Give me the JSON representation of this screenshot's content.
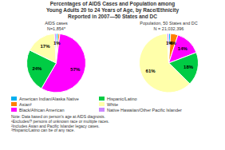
{
  "title": "Percentages of AIDS Cases and Population among\nYoung Adults 20 to 24 Years of Age, by Race/Ethnicity\nReported in 2007—50 States and DC",
  "annotations": [
    "Note: Data based on person's age at AIDS diagnosis.\n¹Excludes/? persons of unknown race or multiple races.\n²Includes Asian and Pacific Islander legacy cases.\n³Hispanic/Latino can be of any race."
  ],
  "chart_data": [
    {
      "type": "pie",
      "title": "AIDS cases\nN=1,854*",
      "categories": [
        "American Indian/Alaska Native",
        "Asian²",
        "Black/African American",
        "Hispanic/Latino",
        "White",
        "Native Hawaiian/Other Pacific Islander"
      ],
      "values": [
        1,
        1,
        57,
        24,
        17,
        1
      ],
      "value_labels": [
        "1%",
        null,
        "57%",
        "24%",
        "17%",
        null
      ],
      "colors": [
        "#00b0f0",
        "#ff8000",
        "#ff00ff",
        "#00cc44",
        "#ffffaa",
        "#cc88ff"
      ],
      "data_labels": true,
      "legend": "bottom"
    },
    {
      "type": "pie",
      "title": "Population, 50 States and DC\nN = 21,032,396",
      "categories": [
        "American Indian/Alaska Native",
        "Asian²",
        "Black/African American",
        "Hispanic/Latino",
        "White",
        "Native Hawaiian/Other Pacific Islander"
      ],
      "values": [
        1,
        4,
        14,
        18,
        61,
        1
      ],
      "value_labels": [
        "1%",
        "4%",
        "14%",
        "18%",
        "61%",
        null
      ],
      "colors": [
        "#00b0f0",
        "#ff8000",
        "#ff00ff",
        "#00cc44",
        "#ffffaa",
        "#cc88ff"
      ],
      "data_labels": true
    }
  ]
}
